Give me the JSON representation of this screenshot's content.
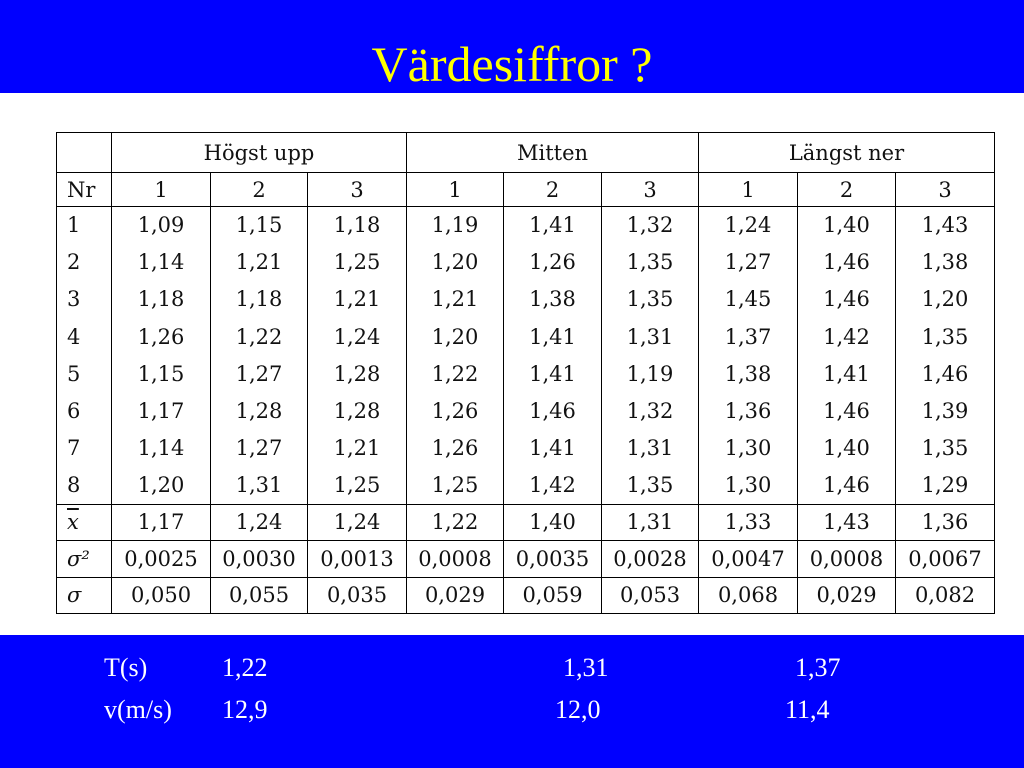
{
  "header": {
    "title": "Värdesiffror ?"
  },
  "table": {
    "groups": [
      "Högst upp",
      "Mitten",
      "Längst ner"
    ],
    "subheaders": [
      "Nr",
      "1",
      "2",
      "3",
      "1",
      "2",
      "3",
      "1",
      "2",
      "3"
    ],
    "rows": [
      [
        "1",
        "1,09",
        "1,15",
        "1,18",
        "1,19",
        "1,41",
        "1,32",
        "1,24",
        "1,40",
        "1,43"
      ],
      [
        "2",
        "1,14",
        "1,21",
        "1,25",
        "1,20",
        "1,26",
        "1,35",
        "1,27",
        "1,46",
        "1,38"
      ],
      [
        "3",
        "1,18",
        "1,18",
        "1,21",
        "1,21",
        "1,38",
        "1,35",
        "1,45",
        "1,46",
        "1,20"
      ],
      [
        "4",
        "1,26",
        "1,22",
        "1,24",
        "1,20",
        "1,41",
        "1,31",
        "1,37",
        "1,42",
        "1,35"
      ],
      [
        "5",
        "1,15",
        "1,27",
        "1,28",
        "1,22",
        "1,41",
        "1,19",
        "1,38",
        "1,41",
        "1,46"
      ],
      [
        "6",
        "1,17",
        "1,28",
        "1,28",
        "1,26",
        "1,46",
        "1,32",
        "1,36",
        "1,46",
        "1,39"
      ],
      [
        "7",
        "1,14",
        "1,27",
        "1,21",
        "1,26",
        "1,41",
        "1,31",
        "1,30",
        "1,40",
        "1,35"
      ],
      [
        "8",
        "1,20",
        "1,31",
        "1,25",
        "1,25",
        "1,42",
        "1,35",
        "1,30",
        "1,46",
        "1,29"
      ]
    ],
    "summary": [
      [
        "x",
        "1,17",
        "1,24",
        "1,24",
        "1,22",
        "1,40",
        "1,31",
        "1,33",
        "1,43",
        "1,36"
      ],
      [
        "σ²",
        "0,0025",
        "0,0030",
        "0,0013",
        "0,0008",
        "0,0035",
        "0,0028",
        "0,0047",
        "0,0008",
        "0,0067"
      ],
      [
        "σ",
        "0,050",
        "0,055",
        "0,035",
        "0,029",
        "0,059",
        "0,053",
        "0,068",
        "0,029",
        "0,082"
      ]
    ]
  },
  "footer": {
    "rows": [
      [
        "T(s)",
        "1,22",
        "1,31",
        "1,37"
      ],
      [
        "v(m/s)",
        "12,9",
        "12,0",
        "11,4"
      ]
    ]
  }
}
